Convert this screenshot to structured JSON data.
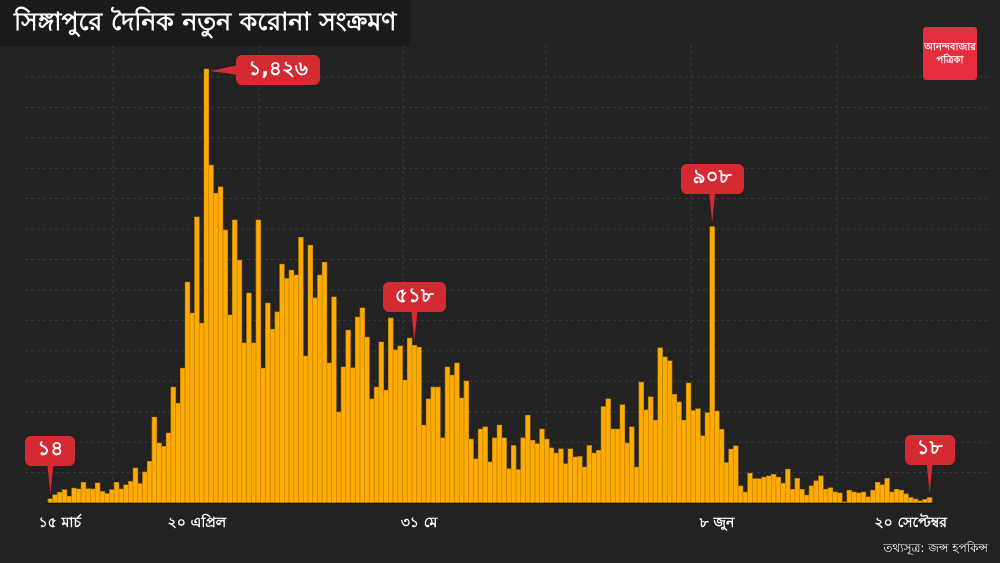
{
  "title": "সিঙ্গাপুরে দৈনিক নতুন করোনা সংক্রমণ",
  "logo": {
    "line1": "আনন্দবাজার",
    "line2": "পত্রিকা"
  },
  "source": "তথ্যসূত্র: জন্স হপকিন্স",
  "colors": {
    "background": "#222222",
    "bar": "#ffab00",
    "bar_edge": "#b97f00",
    "callout": "#d42a32",
    "logo": "#e52d3b"
  },
  "chart_data": {
    "type": "bar",
    "title": "সিঙ্গাপুরে দৈনিক নতুন করোনা সংক্রমণ",
    "xlabel": "",
    "ylabel": "",
    "ylim": [
      0,
      1426
    ],
    "grid": {
      "horizontal_step": 100,
      "on": true
    },
    "values": [
      14,
      27,
      35,
      44,
      22,
      49,
      46,
      68,
      47,
      46,
      66,
      38,
      31,
      44,
      68,
      46,
      60,
      71,
      115,
      64,
      102,
      137,
      282,
      197,
      186,
      230,
      381,
      328,
      443,
      726,
      624,
      940,
      591,
      1426,
      1110,
      1018,
      1039,
      897,
      618,
      930,
      798,
      526,
      690,
      526,
      930,
      443,
      657,
      571,
      628,
      785,
      738,
      765,
      749,
      873,
      483,
      847,
      674,
      749,
      791,
      460,
      677,
      299,
      447,
      568,
      444,
      611,
      641,
      545,
      342,
      381,
      529,
      371,
      608,
      503,
      516,
      404,
      542,
      518,
      512,
      256,
      342,
      381,
      381,
      214,
      447,
      420,
      460,
      345,
      401,
      210,
      145,
      243,
      250,
      135,
      214,
      256,
      214,
      113,
      189,
      110,
      214,
      288,
      206,
      195,
      243,
      210,
      181,
      164,
      178,
      129,
      178,
      151,
      153,
      118,
      189,
      164,
      173,
      317,
      342,
      243,
      243,
      323,
      197,
      250,
      118,
      397,
      306,
      349,
      272,
      510,
      480,
      467,
      357,
      332,
      272,
      394,
      304,
      310,
      221,
      297,
      908,
      302,
      242,
      133,
      177,
      188,
      56,
      36,
      98,
      80,
      80,
      85,
      89,
      94,
      85,
      65,
      111,
      45,
      81,
      45,
      26,
      56,
      73,
      89,
      45,
      50,
      36,
      33,
      4,
      42,
      36,
      33,
      36,
      20,
      42,
      68,
      60,
      81,
      36,
      45,
      42,
      30,
      18,
      13,
      7,
      12,
      18
    ],
    "x_ticks": [
      {
        "index": 2,
        "label": "১৫ মার্চ"
      },
      {
        "index": 31,
        "label": "২০ এপ্রিল"
      },
      {
        "index": 78,
        "label": "৩১ মে"
      },
      {
        "index": 141,
        "label": "৮ জুন"
      },
      {
        "index": 182,
        "label": "২০ সেপ্টেম্বর"
      }
    ],
    "annotations": [
      {
        "index": 0,
        "value": 14,
        "label": "১৪",
        "side": "above"
      },
      {
        "index": 33,
        "value": 1426,
        "label": "১,৪২৬",
        "side": "right"
      },
      {
        "index": 77,
        "value": 518,
        "label": "৫১৮",
        "side": "above"
      },
      {
        "index": 140,
        "value": 908,
        "label": "৯০৮",
        "side": "above"
      },
      {
        "index": 186,
        "value": 18,
        "label": "১৮",
        "side": "above"
      }
    ]
  }
}
